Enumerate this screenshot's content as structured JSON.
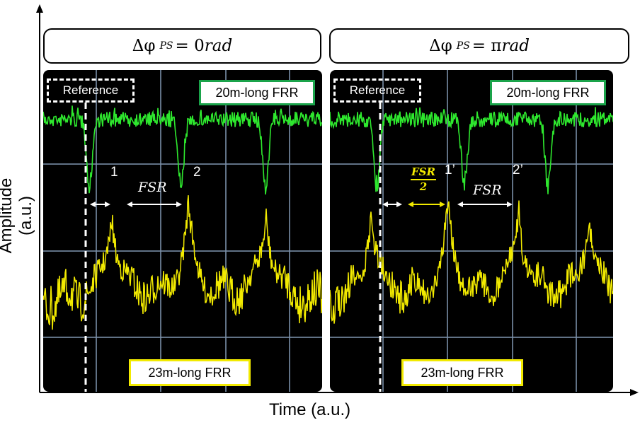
{
  "axes": {
    "ylabel": "Amplitude (a.u.)",
    "xlabel": "Time (a.u.)"
  },
  "panels": [
    {
      "title_prefix": "Δφ",
      "title_sub": "PS",
      "title_value": "= 0 ",
      "title_unit": "rad",
      "reference_label": "Reference",
      "green_label": "20m-long FRR",
      "yellow_label": "23m-long FRR",
      "peak_labels": [
        "1",
        "2"
      ],
      "fsr_label": "FSR"
    },
    {
      "title_prefix": "Δφ",
      "title_sub": "PS",
      "title_value": "= π ",
      "title_unit": "rad",
      "reference_label": "Reference",
      "green_label": "20m-long FRR",
      "yellow_label": "23m-long FRR",
      "peak_labels": [
        "1’",
        "2’"
      ],
      "fsr_label": "FSR",
      "half_fsr_num": "FSR",
      "half_fsr_den": "2"
    }
  ],
  "colors": {
    "green_trace": "#2ee82e",
    "yellow_trace": "#f2ea00",
    "grid": "#7a8fa8",
    "box_green": "#1aa34a"
  }
}
